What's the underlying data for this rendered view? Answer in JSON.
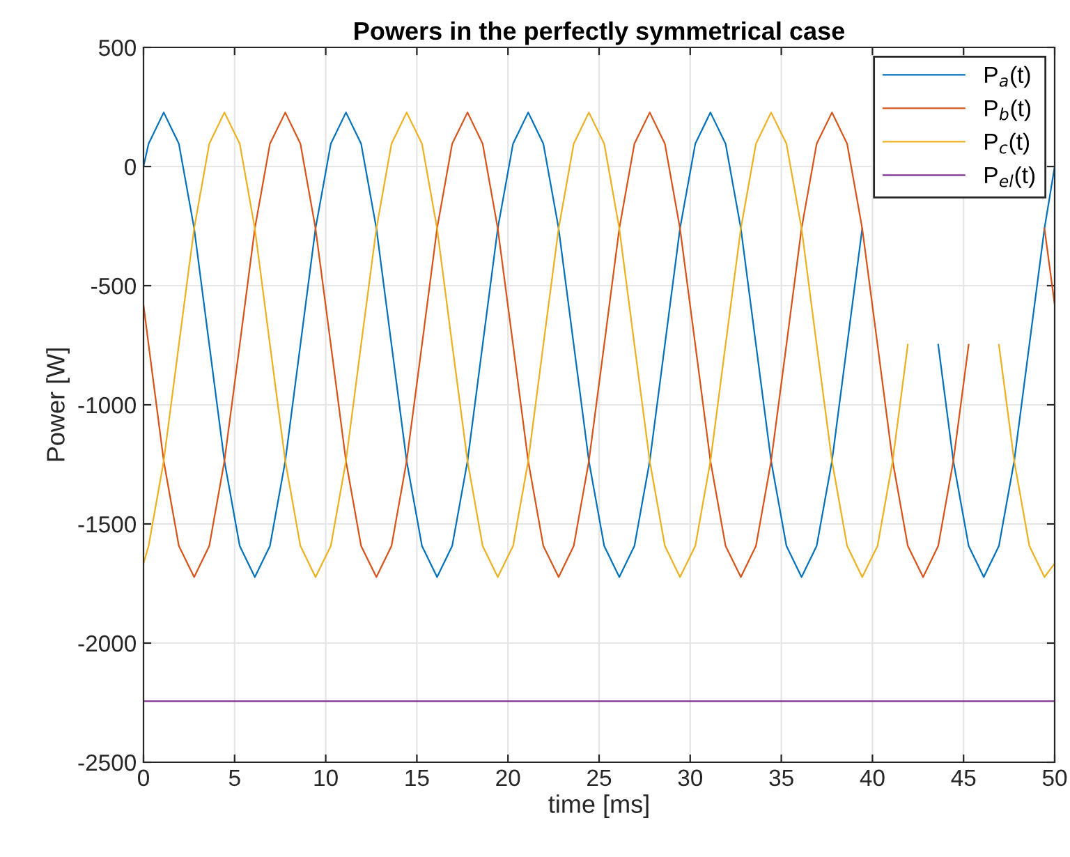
{
  "chart_data": {
    "type": "line",
    "title": "Powers in the perfectly symmetrical case",
    "xlabel": "time [ms]",
    "ylabel": "Power [W]",
    "xlim": [
      0,
      50
    ],
    "xticks": [
      0,
      5,
      10,
      15,
      20,
      25,
      30,
      35,
      40,
      45,
      50
    ],
    "ylim": [
      -2500,
      500
    ],
    "yticks": [
      -2500,
      -2000,
      -1500,
      -1000,
      -500,
      0,
      500
    ],
    "grid": true,
    "legend": "top right",
    "line_style": "solid",
    "x": [
      0,
      0.28,
      1.11,
      1.94,
      2.78,
      3.61,
      4.44,
      5.28,
      6.11,
      6.94,
      7.78,
      8.61,
      9.44,
      10.28,
      11.11,
      11.94,
      12.78,
      13.61,
      14.44,
      15.28,
      16.11,
      16.94,
      17.78,
      18.61,
      19.44,
      20.28,
      21.11,
      21.94,
      22.78,
      23.61,
      24.44,
      25.28,
      26.11,
      26.94,
      27.78,
      28.61,
      29.44,
      30.28,
      31.11,
      31.94,
      32.78,
      33.61,
      34.44,
      35.28,
      36.11,
      36.94,
      37.78,
      38.61,
      39.44,
      40.28,
      41.11,
      41.94,
      42.78,
      43.61,
      44.44,
      45.28,
      46.11,
      46.94,
      47.78,
      48.61,
      49.44,
      50
    ],
    "series": [
      {
        "name": "P$_{a}$(t)",
        "color": "#0072bd",
        "values": [
          0,
          96,
          227,
          96,
          -260,
          -748,
          -1236,
          -1592,
          -1723,
          -1592,
          -1236,
          -748,
          -260,
          96,
          227,
          96,
          -260,
          -748,
          -1236,
          -1592,
          -1723,
          -1592,
          -1236,
          -748,
          -260,
          96,
          227,
          96,
          -260,
          -748,
          -1236,
          -1592,
          -1723,
          -1592,
          -1236,
          -748,
          -260,
          96,
          227,
          96,
          -260,
          -748,
          -1236,
          -1592,
          -1723,
          -1592,
          -1236,
          -748,
          -260,
          null,
          null,
          null,
          null,
          -748,
          -1236,
          -1592,
          -1723,
          -1592,
          -1236,
          -748,
          -260,
          0
        ]
      },
      {
        "name": "P$_{b}$(t)",
        "color": "#d95319",
        "values": [
          -580,
          -748,
          -1236,
          -1592,
          -1723,
          -1592,
          -1236,
          -748,
          -260,
          96,
          227,
          96,
          -260,
          -748,
          -1236,
          -1592,
          -1723,
          -1592,
          -1236,
          -748,
          -260,
          96,
          227,
          96,
          -260,
          -748,
          -1236,
          -1592,
          -1723,
          -1592,
          -1236,
          -748,
          -260,
          96,
          227,
          96,
          -260,
          -748,
          -1236,
          -1592,
          -1723,
          -1592,
          -1236,
          -748,
          -260,
          96,
          227,
          96,
          -260,
          -748,
          -1236,
          -1592,
          -1723,
          -1592,
          -1236,
          -748,
          null,
          null,
          null,
          null,
          -260,
          -580
        ]
      },
      {
        "name": "P$_{c}$(t)",
        "color": "#edb120",
        "values": [
          -1666,
          -1592,
          -1236,
          -748,
          -260,
          96,
          227,
          96,
          -260,
          -748,
          -1236,
          -1592,
          -1723,
          -1592,
          -1236,
          -748,
          -260,
          96,
          227,
          96,
          -260,
          -748,
          -1236,
          -1592,
          -1723,
          -1592,
          -1236,
          -748,
          -260,
          96,
          227,
          96,
          -260,
          -748,
          -1236,
          -1592,
          -1723,
          -1592,
          -1236,
          -748,
          -260,
          96,
          227,
          96,
          -260,
          -748,
          -1236,
          -1592,
          -1723,
          -1592,
          -1236,
          -748,
          null,
          null,
          null,
          null,
          null,
          -748,
          -1236,
          -1592,
          -1723,
          -1666
        ]
      },
      {
        "name": "P$_{el}$(t)",
        "color": "#7e2f8e",
        "x": [
          0,
          50
        ],
        "values": [
          -2244,
          -2244
        ]
      }
    ]
  }
}
